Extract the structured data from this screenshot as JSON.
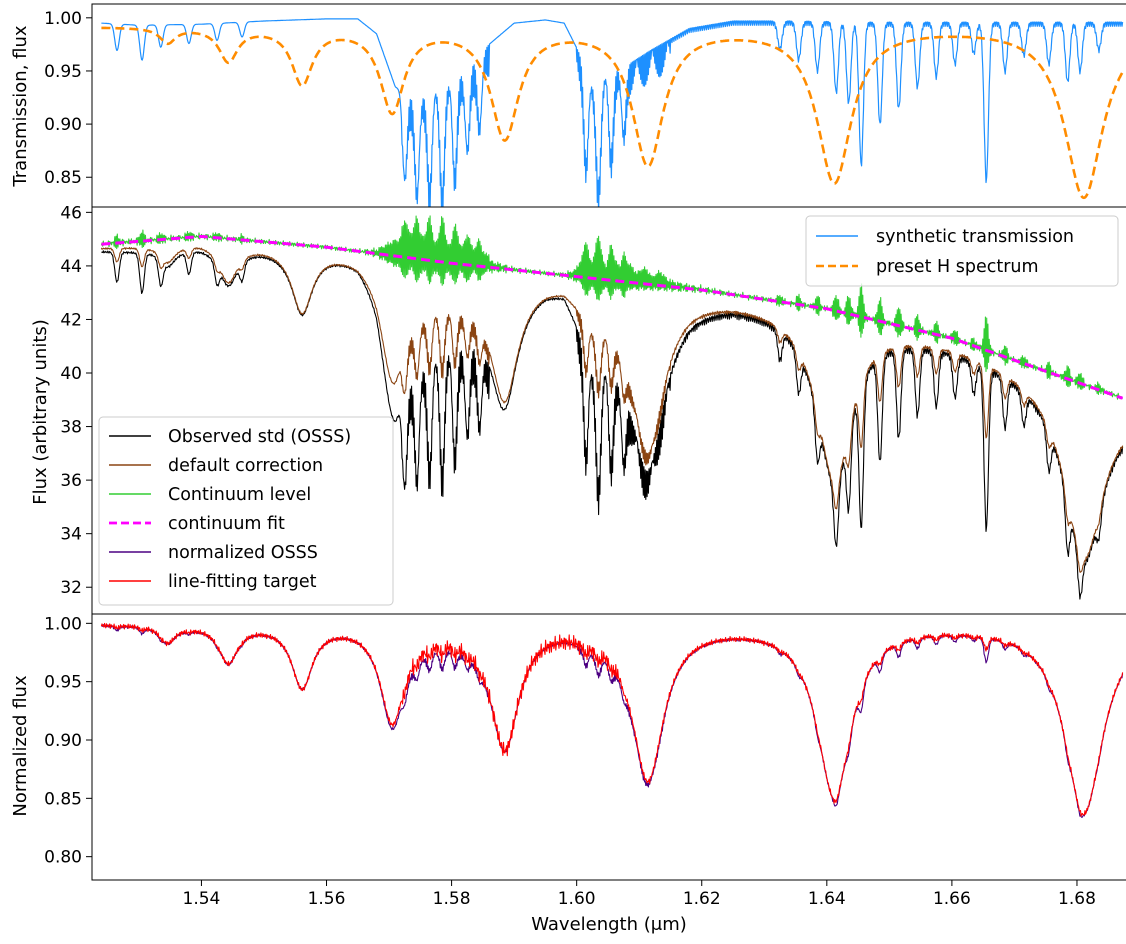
{
  "figure": {
    "xlabel": "Wavelength (μm)",
    "x_ticks": [
      "1.54",
      "1.56",
      "1.58",
      "1.60",
      "1.62",
      "1.64",
      "1.66",
      "1.68"
    ]
  },
  "chart_data": [
    {
      "type": "line",
      "panel": "top",
      "ylabel": "Transmission, flux",
      "xlim": [
        1.5225,
        1.688
      ],
      "ylim": [
        0.822,
        1.013
      ],
      "y_ticks": [
        "0.85",
        "0.90",
        "0.95",
        "1.00"
      ],
      "legend": {
        "placement": "upper-right of middle panel",
        "entries": [
          "synthetic transmission",
          "preset H spectrum"
        ]
      },
      "series": [
        {
          "name": "synthetic transmission",
          "color": "#1e90ff",
          "style": "solid",
          "base": [
            [
              1.524,
              0.995
            ],
            [
              1.53,
              0.993
            ],
            [
              1.54,
              0.994
            ],
            [
              1.55,
              0.997
            ],
            [
              1.56,
              0.999
            ],
            [
              1.565,
              0.999
            ],
            [
              1.568,
              0.985
            ],
            [
              1.571,
              0.935
            ],
            [
              1.574,
              0.925
            ],
            [
              1.577,
              0.93
            ],
            [
              1.58,
              0.94
            ],
            [
              1.583,
              0.955
            ],
            [
              1.586,
              0.975
            ],
            [
              1.59,
              0.995
            ],
            [
              1.595,
              0.998
            ],
            [
              1.598,
              0.995
            ],
            [
              1.601,
              0.96
            ],
            [
              1.603,
              0.93
            ],
            [
              1.605,
              0.95
            ],
            [
              1.608,
              0.955
            ],
            [
              1.612,
              0.97
            ],
            [
              1.618,
              0.99
            ],
            [
              1.625,
              0.997
            ],
            [
              1.635,
              0.997
            ],
            [
              1.645,
              0.996
            ],
            [
              1.66,
              0.996
            ],
            [
              1.675,
              0.996
            ],
            [
              1.688,
              0.996
            ]
          ],
          "dips": [
            [
              1.5265,
              0.975
            ],
            [
              1.5305,
              0.967
            ],
            [
              1.5335,
              0.979
            ],
            [
              1.538,
              0.982
            ],
            [
              1.5425,
              0.984
            ],
            [
              1.5465,
              0.986
            ],
            [
              1.5725,
              0.92
            ],
            [
              1.5745,
              0.912
            ],
            [
              1.5765,
              0.915
            ],
            [
              1.5785,
              0.905
            ],
            [
              1.5805,
              0.915
            ],
            [
              1.5825,
              0.925
            ],
            [
              1.5845,
              0.935
            ],
            [
              1.6015,
              0.915
            ],
            [
              1.6035,
              0.91
            ],
            [
              1.6055,
              0.925
            ],
            [
              1.6075,
              0.94
            ],
            [
              1.6325,
              0.975
            ],
            [
              1.6355,
              0.965
            ],
            [
              1.6385,
              0.955
            ],
            [
              1.6415,
              0.935
            ],
            [
              1.6435,
              0.925
            ],
            [
              1.6455,
              0.867
            ],
            [
              1.6485,
              0.905
            ],
            [
              1.6515,
              0.92
            ],
            [
              1.6545,
              0.94
            ],
            [
              1.6575,
              0.95
            ],
            [
              1.6605,
              0.962
            ],
            [
              1.6635,
              0.972
            ],
            [
              1.6655,
              0.852
            ],
            [
              1.6685,
              0.955
            ],
            [
              1.6715,
              0.97
            ],
            [
              1.6755,
              0.962
            ],
            [
              1.6785,
              0.945
            ],
            [
              1.6805,
              0.955
            ],
            [
              1.6835,
              0.975
            ]
          ]
        },
        {
          "name": "preset H spectrum",
          "color": "#ff8c00",
          "style": "dashed",
          "continuum": 0.992,
          "lines": [
            [
              1.5346,
              0.014,
              0.0015
            ],
            [
              1.5443,
              0.031,
              0.0018
            ],
            [
              1.5561,
              0.052,
              0.002
            ],
            [
              1.5705,
              0.078,
              0.0023
            ],
            [
              1.5885,
              0.103,
              0.0027
            ],
            [
              1.6114,
              0.128,
              0.003
            ],
            [
              1.6412,
              0.145,
              0.0033
            ],
            [
              1.6811,
              0.16,
              0.0037
            ]
          ]
        }
      ]
    },
    {
      "type": "line",
      "panel": "middle",
      "ylabel": "Flux (arbitrary units)",
      "xlim": [
        1.5225,
        1.688
      ],
      "ylim": [
        31.0,
        46.2
      ],
      "y_ticks": [
        "32",
        "34",
        "36",
        "38",
        "40",
        "42",
        "44",
        "46"
      ],
      "legend": {
        "placement": "lower-left",
        "entries": [
          "Observed std (OSSS)",
          "default correction",
          "Continuum level",
          "continuum fit",
          "normalized OSSS",
          "line-fitting target"
        ]
      },
      "series": [
        {
          "name": "Observed std (OSSS)",
          "color": "#000000",
          "style": "solid"
        },
        {
          "name": "default correction",
          "color": "#8b4513",
          "style": "solid"
        },
        {
          "name": "Continuum level",
          "color": "#32cd32",
          "style": "solid"
        },
        {
          "name": "continuum fit",
          "color": "#ff00ff",
          "style": "dashed",
          "points": [
            [
              1.5235,
              44.8
            ],
            [
              1.54,
              45.1
            ],
            [
              1.56,
              44.7
            ],
            [
              1.58,
              44.1
            ],
            [
              1.6,
              43.6
            ],
            [
              1.62,
              43.1
            ],
            [
              1.64,
              42.4
            ],
            [
              1.66,
              41.3
            ],
            [
              1.688,
              39.0
            ]
          ]
        }
      ]
    },
    {
      "type": "line",
      "panel": "bottom",
      "ylabel": "Normalized flux",
      "xlim": [
        1.5225,
        1.688
      ],
      "ylim": [
        0.78,
        1.008
      ],
      "y_ticks": [
        "0.80",
        "0.85",
        "0.90",
        "0.95",
        "1.00"
      ],
      "series": [
        {
          "name": "normalized OSSS",
          "color": "#4b0082",
          "style": "solid"
        },
        {
          "name": "line-fitting target",
          "color": "#ff0000",
          "style": "solid"
        }
      ]
    }
  ]
}
